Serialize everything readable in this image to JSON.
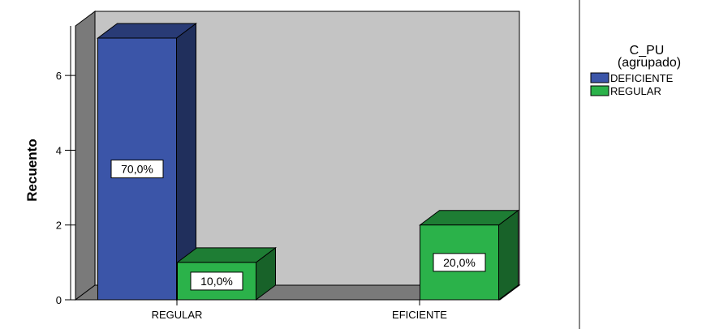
{
  "chart_data": {
    "type": "bar",
    "ylabel": "Recuento",
    "categories": [
      "REGULAR",
      "EFICIENTE"
    ],
    "series": [
      {
        "name": "DEFICIENTE",
        "color": "#3b55a8",
        "values": [
          7,
          0
        ],
        "labels": [
          "70,0%",
          ""
        ]
      },
      {
        "name": "REGULAR",
        "color": "#2bb24a",
        "values": [
          1,
          2
        ],
        "labels": [
          "10,0%",
          "20,0%"
        ]
      }
    ],
    "ylim": [
      0,
      7
    ],
    "yticks": [
      "0",
      "2",
      "4",
      "6"
    ],
    "grid": false,
    "legend": {
      "title_line1": "C_PU",
      "title_line2": "(agrupado)",
      "position": "right"
    }
  }
}
